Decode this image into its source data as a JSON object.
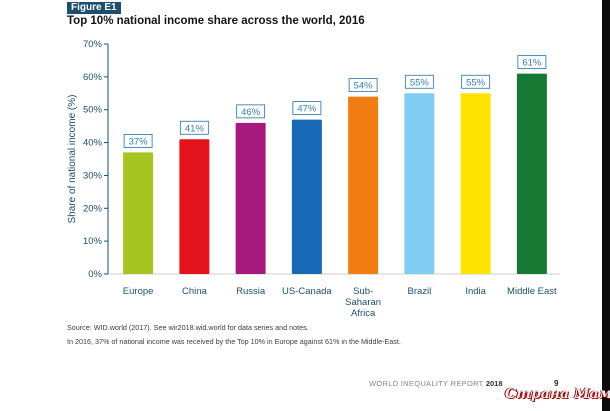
{
  "figure": {
    "label": "Figure E1",
    "title": "Top 10% national income share across the world, 2016"
  },
  "chart_data": {
    "type": "bar",
    "title": "Top 10% national income share across the world, 2016",
    "ylabel": "Share of national income (%)",
    "xlabel": "",
    "ylim": [
      0,
      70
    ],
    "yticks": [
      "0%",
      "10%",
      "20%",
      "30%",
      "40%",
      "50%",
      "60%",
      "70%"
    ],
    "grid": false,
    "categories": [
      [
        "Europe"
      ],
      [
        "China"
      ],
      [
        "Russia"
      ],
      [
        "US-Canada"
      ],
      [
        "Sub-",
        "Saharan",
        "Africa"
      ],
      [
        "Brazil"
      ],
      [
        "India"
      ],
      [
        "Middle East"
      ]
    ],
    "values": [
      37,
      41,
      46,
      47,
      54,
      55,
      55,
      61
    ],
    "value_labels": [
      "37%",
      "41%",
      "46%",
      "47%",
      "54%",
      "55%",
      "55%",
      "61%"
    ],
    "colors": [
      "#a7c521",
      "#e2131a",
      "#a51a7c",
      "#1768b5",
      "#f07c12",
      "#7fcdf0",
      "#fde400",
      "#167a35"
    ],
    "axis_color": "#1d4e6d",
    "label_box_color": "#3a7fb0"
  },
  "captions": {
    "source": "Source: WID.world (2017). See wir2018.wid.world for data series and notes.",
    "note": "In 2016, 37% of national income was received by the Top 10% in Europe against 61% in the Middle-East."
  },
  "footer": {
    "report": "WORLD INEQUALITY REPORT",
    "year": "2018",
    "page": "9"
  },
  "watermark": {
    "text": "Страна Мам"
  }
}
